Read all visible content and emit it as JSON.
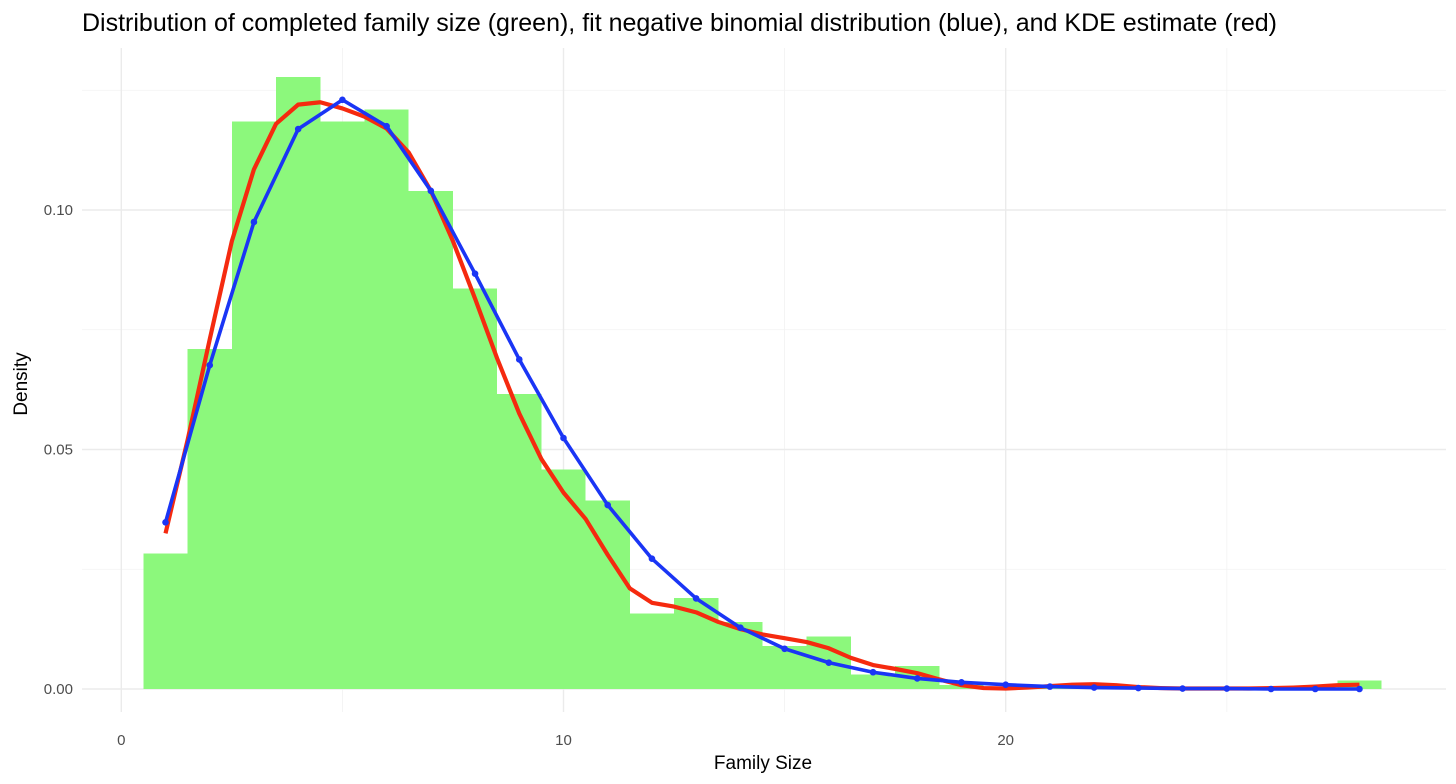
{
  "chart_data": {
    "type": "bar",
    "title": "Distribution of completed family size (green), fit negative binomial distribution (blue), and KDE estimate (red)",
    "xlabel": "Family Size",
    "ylabel": "Density",
    "xlim": [
      0.0,
      29.0
    ],
    "ylim": [
      0.0,
      0.127
    ],
    "x_ticks": [
      0,
      10,
      20
    ],
    "x_tick_labels": [
      "0",
      "10",
      "20"
    ],
    "y_ticks": [
      0.0,
      0.05,
      0.1
    ],
    "y_tick_labels": [
      "0.00",
      "0.05",
      "0.10"
    ],
    "grid": true,
    "colors": {
      "histogram": "#8cf87c",
      "negative_binomial": "#1a35f5",
      "kde": "#f52a0f"
    },
    "histogram": {
      "bin_width": 1,
      "bin_centers": [
        1,
        2,
        3,
        4,
        5,
        6,
        7,
        8,
        9,
        10,
        11,
        12,
        13,
        14,
        15,
        16,
        17,
        18,
        19,
        20,
        21,
        22,
        23,
        24,
        25,
        26,
        27,
        28
      ],
      "density": [
        0.0283,
        0.071,
        0.1185,
        0.1278,
        0.1185,
        0.121,
        0.104,
        0.0836,
        0.0616,
        0.0458,
        0.0394,
        0.0158,
        0.019,
        0.014,
        0.009,
        0.011,
        0.003,
        0.0048,
        0.0008,
        0.0004,
        0.0006,
        0.0012,
        0.0004,
        0.0002,
        0.0,
        0.0,
        0.0,
        0.0018
      ]
    },
    "series": [
      {
        "name": "negative binomial",
        "x": [
          1,
          2,
          3,
          4,
          5,
          6,
          7,
          8,
          9,
          10,
          11,
          12,
          13,
          14,
          15,
          16,
          17,
          18,
          19,
          20,
          21,
          22,
          23,
          24,
          25,
          26,
          27,
          28
        ],
        "y": [
          0.0348,
          0.0676,
          0.0975,
          0.1169,
          0.123,
          0.1175,
          0.104,
          0.0867,
          0.0688,
          0.0524,
          0.0384,
          0.0272,
          0.0189,
          0.0128,
          0.0084,
          0.0055,
          0.0035,
          0.0022,
          0.0014,
          0.0009,
          0.0005,
          0.0003,
          0.0002,
          0.0001,
          0.0001,
          0.0,
          0.0,
          0.0
        ]
      },
      {
        "name": "KDE",
        "x": [
          1.0,
          1.5,
          2.0,
          2.5,
          3.0,
          3.5,
          4.0,
          4.5,
          5.0,
          5.5,
          6.0,
          6.5,
          7.0,
          7.5,
          8.0,
          8.5,
          9.0,
          9.5,
          10.0,
          10.5,
          11.0,
          11.5,
          12.0,
          12.5,
          13.0,
          13.5,
          14.0,
          14.5,
          15.0,
          15.5,
          16.0,
          16.5,
          17.0,
          17.5,
          18.0,
          18.5,
          19.0,
          19.5,
          20.0,
          20.5,
          21.0,
          21.5,
          22.0,
          22.5,
          23.0,
          23.5,
          24.0,
          24.5,
          25.0,
          25.5,
          26.0,
          26.5,
          27.0,
          27.5,
          28.0
        ],
        "y": [
          0.0325,
          0.052,
          0.073,
          0.0935,
          0.1085,
          0.118,
          0.122,
          0.1225,
          0.1212,
          0.1195,
          0.117,
          0.112,
          0.104,
          0.0935,
          0.0815,
          0.069,
          0.0575,
          0.048,
          0.041,
          0.0355,
          0.028,
          0.021,
          0.018,
          0.0172,
          0.016,
          0.014,
          0.0125,
          0.0114,
          0.0106,
          0.0098,
          0.0085,
          0.0065,
          0.005,
          0.0042,
          0.0033,
          0.002,
          0.0008,
          0.0002,
          0.0001,
          0.0003,
          0.0006,
          0.0009,
          0.001,
          0.0008,
          0.0004,
          0.0002,
          0.0001,
          0.0001,
          0.0001,
          0.0001,
          0.0002,
          0.0003,
          0.0005,
          0.0008,
          0.0009
        ]
      }
    ]
  }
}
